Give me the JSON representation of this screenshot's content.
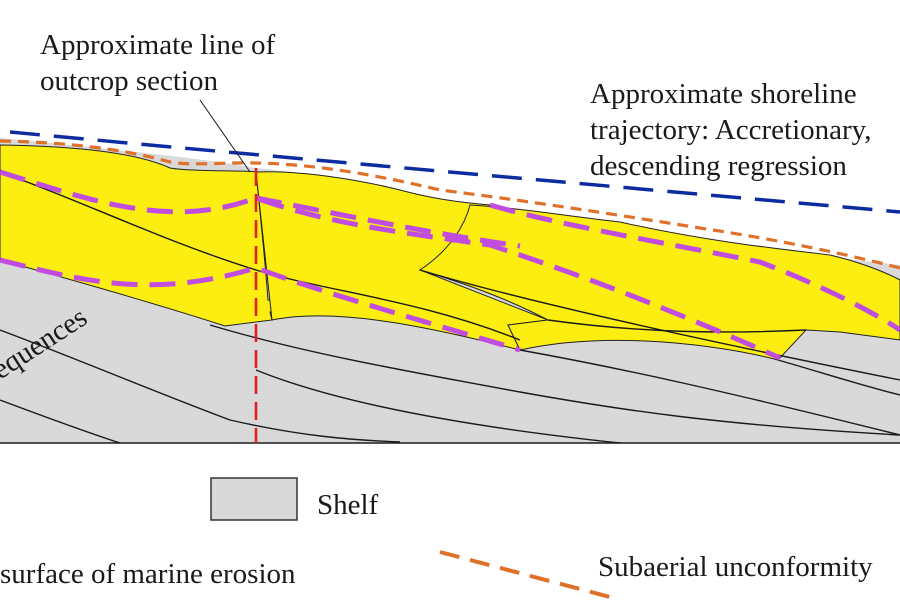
{
  "labels": {
    "outcrop_line": [
      "Approximate line of",
      "outcrop section"
    ],
    "shoreline": [
      "Approximate shoreline",
      "trajectory: Accretionary,",
      "descending regression"
    ],
    "sequences_fragment": "equences"
  },
  "legend": {
    "shelf": "Shelf",
    "marine_erosion": "surface of marine erosion",
    "subaerial": "Subaerial unconformity"
  },
  "colors": {
    "shelf_fill": "#d9d9da",
    "shoreface_fill": "#fbee10",
    "shoreline_trajectory": "#0d2ca0",
    "subaerial_unconformity": "#e0712a",
    "marine_erosion_surface": "#c04ce0",
    "outcrop_line": "#e02020",
    "strata_line": "#1a1a1a"
  }
}
